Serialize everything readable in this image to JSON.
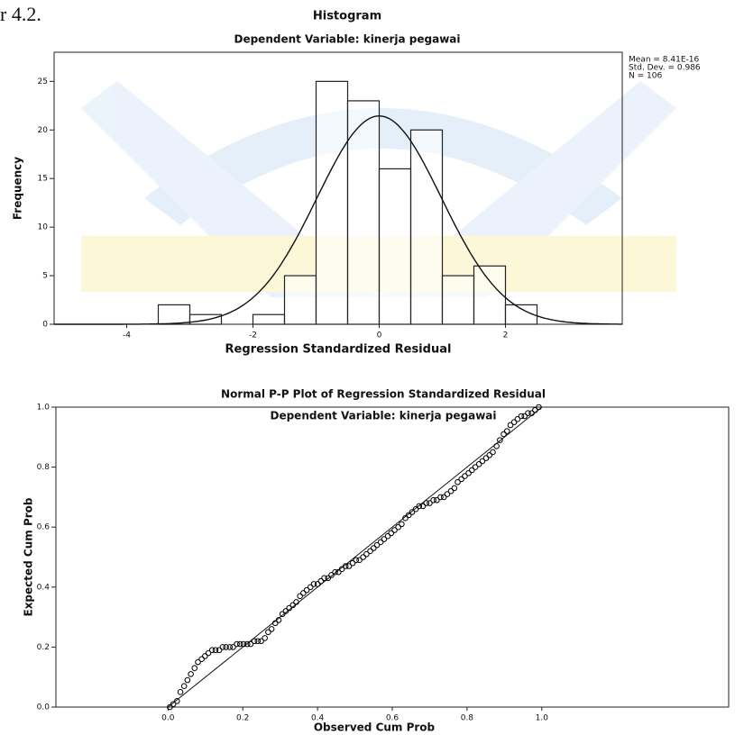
{
  "page_text": "r 4.2.",
  "chart_data": [
    {
      "type": "histogram",
      "title": "Histogram",
      "subtitle": "Dependent Variable: kinerja pegawai",
      "x_label": "Regression Standardized Residual",
      "y_label": "Frequency",
      "bins": [
        -3.5,
        -3,
        -2.5,
        -2,
        -1.5,
        -1,
        -0.5,
        0,
        0.5,
        1,
        1.5,
        2,
        2.5
      ],
      "counts": [
        2,
        1,
        0,
        1,
        5,
        25,
        23,
        16,
        20,
        5,
        6,
        2
      ],
      "stats": [
        {
          "value": 8.41e-16,
          "label": "Mean = 8.41E-16"
        },
        {
          "value": 0.986,
          "label": "Std. Dev. = 0.986"
        },
        {
          "value": 106,
          "label": "N = 106"
        }
      ],
      "normal_curve": true,
      "color": "#ffffff",
      "xlim": [
        -5.15,
        3.85
      ],
      "ylim": [
        0,
        28
      ],
      "xticks": [
        -4,
        -2,
        0,
        2
      ],
      "yticks": [
        0,
        5,
        10,
        15,
        20,
        25
      ]
    },
    {
      "type": "scatter",
      "title": "Normal P-P Plot of Regression Standardized Residual",
      "subtitle": "Dependent Variable: kinerja pegawai",
      "x_label": "Observed Cum Prob",
      "y_label": "Expected Cum Prob",
      "reference_line": true,
      "color": "#000000",
      "x": [
        0.005,
        0.014,
        0.024,
        0.033,
        0.043,
        0.052,
        0.061,
        0.071,
        0.08,
        0.09,
        0.099,
        0.108,
        0.118,
        0.127,
        0.137,
        0.146,
        0.155,
        0.165,
        0.174,
        0.184,
        0.193,
        0.202,
        0.212,
        0.221,
        0.231,
        0.24,
        0.249,
        0.259,
        0.268,
        0.277,
        0.287,
        0.296,
        0.306,
        0.315,
        0.324,
        0.334,
        0.343,
        0.353,
        0.362,
        0.371,
        0.381,
        0.39,
        0.4,
        0.409,
        0.418,
        0.428,
        0.437,
        0.447,
        0.456,
        0.465,
        0.475,
        0.484,
        0.494,
        0.503,
        0.512,
        0.522,
        0.531,
        0.541,
        0.55,
        0.559,
        0.569,
        0.578,
        0.588,
        0.597,
        0.606,
        0.616,
        0.625,
        0.635,
        0.644,
        0.653,
        0.663,
        0.672,
        0.682,
        0.691,
        0.7,
        0.71,
        0.719,
        0.729,
        0.738,
        0.747,
        0.757,
        0.766,
        0.775,
        0.785,
        0.794,
        0.804,
        0.813,
        0.822,
        0.832,
        0.841,
        0.851,
        0.86,
        0.869,
        0.879,
        0.888,
        0.898,
        0.907,
        0.916,
        0.926,
        0.935,
        0.945,
        0.954,
        0.963,
        0.973,
        0.982,
        0.992
      ],
      "values": [
        0.0,
        0.01,
        0.02,
        0.05,
        0.07,
        0.09,
        0.11,
        0.13,
        0.15,
        0.16,
        0.17,
        0.18,
        0.19,
        0.19,
        0.19,
        0.2,
        0.2,
        0.2,
        0.2,
        0.21,
        0.21,
        0.21,
        0.21,
        0.21,
        0.22,
        0.22,
        0.22,
        0.23,
        0.25,
        0.26,
        0.28,
        0.29,
        0.31,
        0.32,
        0.33,
        0.34,
        0.35,
        0.37,
        0.38,
        0.39,
        0.4,
        0.41,
        0.41,
        0.42,
        0.43,
        0.43,
        0.44,
        0.45,
        0.45,
        0.46,
        0.47,
        0.47,
        0.48,
        0.49,
        0.49,
        0.5,
        0.51,
        0.52,
        0.53,
        0.54,
        0.55,
        0.56,
        0.57,
        0.58,
        0.59,
        0.6,
        0.61,
        0.63,
        0.64,
        0.65,
        0.66,
        0.67,
        0.67,
        0.68,
        0.68,
        0.69,
        0.69,
        0.7,
        0.7,
        0.71,
        0.72,
        0.73,
        0.75,
        0.76,
        0.77,
        0.78,
        0.79,
        0.8,
        0.81,
        0.82,
        0.83,
        0.84,
        0.85,
        0.87,
        0.89,
        0.91,
        0.92,
        0.94,
        0.95,
        0.96,
        0.97,
        0.97,
        0.98,
        0.98,
        0.99,
        1.0
      ],
      "xlim": [
        -0.3,
        1.5
      ],
      "ylim": [
        0,
        1
      ],
      "xticks": [
        {
          "value": 0,
          "label": "0.0"
        },
        0.2,
        0.4,
        0.6,
        0.8,
        {
          "value": 1,
          "label": "1.0"
        }
      ],
      "yticks": [
        {
          "value": 0,
          "label": "0.0"
        },
        0.2,
        0.4,
        0.6,
        0.8,
        {
          "value": 1,
          "label": "1.0"
        }
      ]
    }
  ]
}
